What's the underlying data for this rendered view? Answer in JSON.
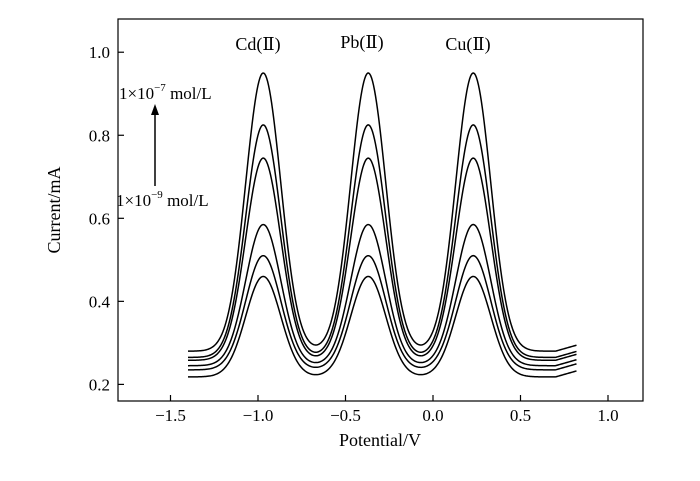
{
  "chart_data": {
    "type": "line",
    "title": "",
    "xlabel": "Potential/V",
    "ylabel": "Current/mA",
    "xlim": [
      -1.8,
      1.2
    ],
    "ylim": [
      0.16,
      1.08
    ],
    "x_ticks": [
      -1.5,
      -1.0,
      -0.5,
      0.0,
      0.5,
      1.0
    ],
    "x_tick_labels": [
      "−1.5",
      "−1.0",
      "−0.5",
      "0.0",
      "0.5",
      "1.0"
    ],
    "y_ticks": [
      0.2,
      0.4,
      0.6,
      0.8,
      1.0
    ],
    "y_tick_labels": [
      "0.2",
      "0.4",
      "0.6",
      "0.8",
      "1.0"
    ],
    "grid": false,
    "x_range": [
      -1.4,
      0.82
    ],
    "peak_centers": [
      -0.97,
      -0.37,
      0.23
    ],
    "peak_labels": [
      "Cd(Ⅱ)",
      "Pb(Ⅱ)",
      "Cu(Ⅱ)"
    ],
    "series": [
      {
        "baseline": 0.218,
        "peak_height": 0.46
      },
      {
        "baseline": 0.235,
        "peak_height": 0.51
      },
      {
        "baseline": 0.245,
        "peak_height": 0.585
      },
      {
        "baseline": 0.258,
        "peak_height": 0.745
      },
      {
        "baseline": 0.265,
        "peak_height": 0.825
      },
      {
        "baseline": 0.28,
        "peak_height": 0.95
      }
    ],
    "annotations": {
      "top_main": "1×10",
      "top_exp": "−7",
      "top_unit": " mol/L",
      "bottom_main": "1×10",
      "bottom_exp": "−9",
      "bottom_unit": " mol/L"
    },
    "line_color": "#000000"
  }
}
